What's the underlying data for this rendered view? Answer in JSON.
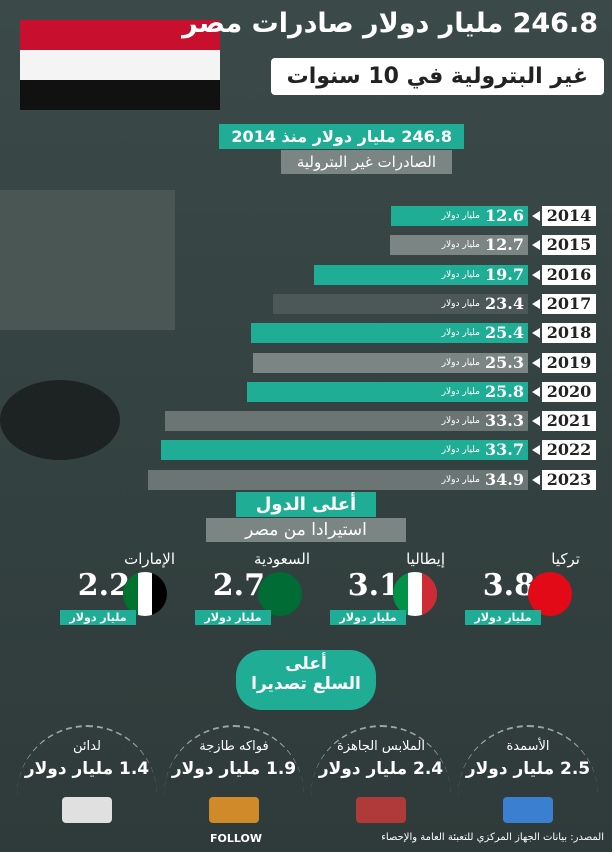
{
  "header": {
    "title": "246.8 مليار دولار صادرات مصر",
    "subtitle": "غير البترولية في 10 سنوات",
    "total": "246.8 مليار دولار منذ 2014",
    "total_label": "الصادرات غير البترولية"
  },
  "chart_data": {
    "type": "bar",
    "orientation": "horizontal",
    "unit": "مليار دولار",
    "categories": [
      "2014",
      "2015",
      "2016",
      "2017",
      "2018",
      "2019",
      "2020",
      "2021",
      "2022",
      "2023"
    ],
    "values": [
      12.6,
      12.7,
      19.7,
      23.4,
      25.4,
      25.3,
      25.8,
      33.3,
      33.7,
      34.9
    ],
    "colors": [
      "#1fae95",
      "#7b8584",
      "#1fae95",
      "#4c5857",
      "#1fae95",
      "#7b8584",
      "#1fae95",
      "#6b7574",
      "#1fae95",
      "#6b7574"
    ]
  },
  "countries": {
    "title": "أعلى الدول",
    "subtitle": "استيرادا من مصر",
    "unit": "مليار دولار",
    "items": [
      {
        "name": "تركيا",
        "value": "3.8"
      },
      {
        "name": "إيطاليا",
        "value": "3.1"
      },
      {
        "name": "السعودية",
        "value": "2.7"
      },
      {
        "name": "الإمارات",
        "value": "2.2"
      }
    ]
  },
  "goods": {
    "title": "أعلى",
    "subtitle": "السلع تصديرا",
    "items": [
      {
        "name": "الأسمدة",
        "value": "2.5 مليار دولار"
      },
      {
        "name": "الملابس الجاهزة",
        "value": "2.4 مليار دولار"
      },
      {
        "name": "فواكه طازجة",
        "value": "1.9 مليار دولار"
      },
      {
        "name": "لدائن",
        "value": "1.4 مليار دولار"
      }
    ]
  },
  "source": "المصدر: بيانات الجهاز المركزي للتعبئة العامة والإحصاء",
  "logo": "FOLLOW"
}
